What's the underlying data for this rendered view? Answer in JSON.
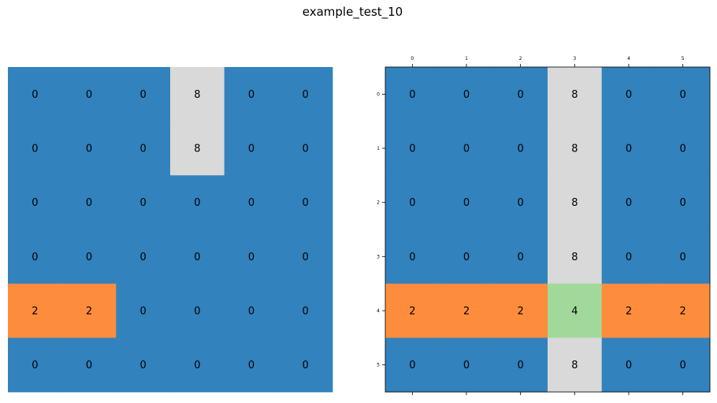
{
  "figure": {
    "title": "example_test_10"
  },
  "palette": {
    "0": "#3182bd",
    "2": "#fd8d3c",
    "4": "#a1d99b",
    "8": "#d9d9d9"
  },
  "chart_data": [
    {
      "type": "heatmap",
      "name": "input-grid",
      "show_ticks": false,
      "values": [
        [
          0,
          0,
          0,
          8,
          0,
          0
        ],
        [
          0,
          0,
          0,
          8,
          0,
          0
        ],
        [
          0,
          0,
          0,
          0,
          0,
          0
        ],
        [
          0,
          0,
          0,
          0,
          0,
          0
        ],
        [
          2,
          2,
          0,
          0,
          0,
          0
        ],
        [
          0,
          0,
          0,
          0,
          0,
          0
        ]
      ]
    },
    {
      "type": "heatmap",
      "name": "output-grid",
      "show_ticks": true,
      "x_ticks": [
        "0",
        "1",
        "2",
        "3",
        "4",
        "5"
      ],
      "y_ticks": [
        "0",
        "1",
        "2",
        "3",
        "4",
        "5"
      ],
      "x_tick_position": "top",
      "values": [
        [
          0,
          0,
          0,
          8,
          0,
          0
        ],
        [
          0,
          0,
          0,
          8,
          0,
          0
        ],
        [
          0,
          0,
          0,
          8,
          0,
          0
        ],
        [
          0,
          0,
          0,
          8,
          0,
          0
        ],
        [
          2,
          2,
          2,
          4,
          2,
          2
        ],
        [
          0,
          0,
          0,
          8,
          0,
          0
        ]
      ]
    }
  ]
}
